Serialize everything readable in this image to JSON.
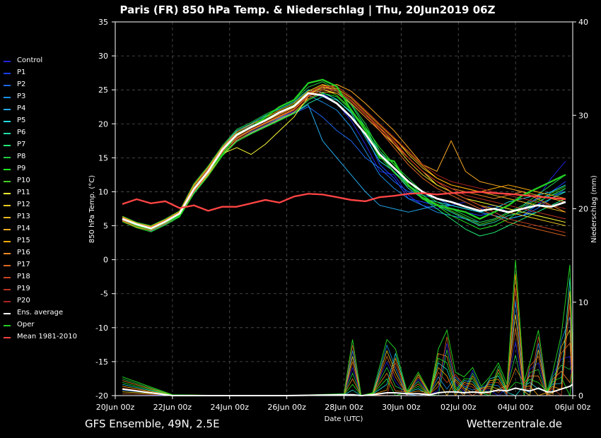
{
  "chart_data": {
    "type": "line",
    "title": "Paris  (FR)  850 hPa Temp. & Niederschlag | Thu, 20Jun2019 06Z",
    "xlabel": "Date (UTC)",
    "ylabel": "850 hPa Temp. (°C)",
    "y2label": "Niederschlag (mm)",
    "ylim": [
      -20,
      35
    ],
    "y2lim": [
      0,
      40
    ],
    "yticks": [
      "35",
      "30",
      "25",
      "20",
      "15",
      "10",
      "5",
      "0",
      "-5",
      "-10",
      "-15",
      "-20"
    ],
    "y2ticks": [
      "40",
      "30",
      "20",
      "10",
      "0"
    ],
    "xlim": [
      0,
      16
    ],
    "x_ticks": [
      {
        "x": 0,
        "label": "20Jun 00z"
      },
      {
        "x": 2,
        "label": "22Jun 00z"
      },
      {
        "x": 4,
        "label": "24Jun 00z"
      },
      {
        "x": 6,
        "label": "26Jun 00z"
      },
      {
        "x": 8,
        "label": "28Jun 00z"
      },
      {
        "x": 10,
        "label": "30Jun 00z"
      },
      {
        "x": 12,
        "label": "02Jul 00z"
      },
      {
        "x": 14,
        "label": "04Jul 00z"
      },
      {
        "x": 16,
        "label": "06Jul 00z"
      }
    ],
    "grid": true,
    "legend_position": "left",
    "footer_left": "GFS Ensemble, 49N, 2.5E",
    "footer_right": "Wetterzentrale.de",
    "x_days": [
      0.25,
      0.75,
      1.25,
      1.75,
      2.25,
      2.75,
      3.25,
      3.75,
      4.25,
      4.75,
      5.25,
      5.75,
      6.25,
      6.75,
      7.25,
      7.75,
      8.25,
      8.75,
      9.25,
      9.75,
      10.25,
      10.75,
      11.25,
      11.75,
      12.25,
      12.75,
      13.25,
      13.75,
      14.25,
      14.75,
      15.25,
      15.75
    ],
    "series": [
      {
        "name": "Oper",
        "color": "#22cc22",
        "width": 2.2,
        "temp": [
          6.0,
          5.0,
          4.5,
          5.5,
          6.5,
          10.5,
          13.0,
          15.5,
          18.5,
          19.5,
          21.0,
          22.5,
          23.5,
          26.0,
          26.5,
          25.5,
          22.0,
          19.0,
          15.0,
          14.5,
          11.0,
          9.0,
          8.0,
          7.5,
          7.0,
          6.0,
          7.0,
          8.0,
          9.5,
          10.5,
          11.5,
          12.5
        ]
      },
      {
        "name": "Control",
        "color": "#2222dd",
        "width": 1,
        "temp": [
          6.0,
          5.5,
          4.8,
          5.8,
          7.0,
          10.8,
          13.5,
          16.5,
          18.8,
          19.8,
          20.5,
          21.5,
          22.5,
          24.5,
          24.0,
          23.0,
          20.5,
          17.0,
          13.0,
          12.5,
          9.5,
          8.0,
          7.5,
          8.0,
          8.5,
          7.5,
          8.0,
          7.0,
          7.5,
          9.0,
          12.0,
          14.5
        ]
      },
      {
        "name": "P1",
        "color": "#1a3fff",
        "width": 1,
        "temp": [
          6.2,
          5.2,
          4.6,
          5.5,
          6.8,
          10.2,
          12.8,
          16.0,
          18.0,
          19.2,
          20.2,
          21.0,
          21.8,
          23.5,
          24.5,
          23.0,
          21.0,
          18.5,
          14.0,
          12.0,
          9.0,
          8.5,
          8.0,
          7.5,
          7.0,
          6.5,
          7.0,
          6.0,
          6.5,
          8.0,
          10.0,
          11.5
        ]
      },
      {
        "name": "P2",
        "color": "#1a66ee",
        "width": 1,
        "temp": [
          5.8,
          5.0,
          4.2,
          5.2,
          6.5,
          9.8,
          12.5,
          15.5,
          17.5,
          18.8,
          19.8,
          20.8,
          21.5,
          22.5,
          21.0,
          19.0,
          17.5,
          15.0,
          13.5,
          11.5,
          10.0,
          9.5,
          9.0,
          8.0,
          7.5,
          7.0,
          6.5,
          6.0,
          6.5,
          7.5,
          9.0,
          10.5
        ]
      },
      {
        "name": "P3",
        "color": "#1a90e8",
        "width": 1,
        "temp": [
          6.1,
          5.3,
          4.7,
          5.6,
          6.9,
          10.6,
          13.2,
          16.2,
          18.4,
          19.6,
          20.6,
          21.7,
          22.7,
          24.2,
          23.2,
          22.0,
          19.5,
          16.0,
          12.5,
          10.5,
          9.0,
          8.0,
          7.0,
          6.5,
          6.0,
          5.5,
          6.0,
          7.0,
          8.0,
          9.0,
          9.5,
          10.0
        ]
      },
      {
        "name": "P4",
        "color": "#22aaee",
        "width": 1,
        "temp": [
          5.9,
          4.9,
          4.4,
          5.4,
          6.6,
          10.0,
          12.7,
          15.8,
          17.8,
          19.0,
          20.0,
          20.9,
          21.6,
          22.8,
          17.5,
          15.0,
          12.5,
          10.0,
          8.0,
          7.5,
          7.0,
          7.5,
          8.0,
          8.0,
          7.5,
          7.0,
          6.5,
          6.0,
          6.5,
          7.0,
          8.0,
          9.0
        ]
      },
      {
        "name": "P5",
        "color": "#22dddd",
        "width": 1,
        "temp": [
          6.3,
          5.4,
          4.9,
          5.9,
          7.1,
          11.0,
          13.6,
          16.6,
          19.0,
          20.0,
          21.2,
          22.2,
          23.2,
          25.0,
          24.6,
          23.6,
          21.6,
          18.0,
          14.5,
          13.0,
          10.5,
          9.0,
          8.5,
          8.0,
          7.5,
          7.0,
          7.5,
          8.5,
          9.0,
          9.5,
          10.0,
          11.0
        ]
      },
      {
        "name": "P6",
        "color": "#22ddaa",
        "width": 1,
        "temp": [
          5.7,
          4.8,
          4.3,
          5.3,
          6.4,
          9.9,
          12.4,
          15.4,
          17.6,
          18.6,
          19.6,
          20.6,
          21.6,
          23.0,
          24.0,
          23.5,
          21.8,
          19.0,
          16.0,
          13.5,
          11.0,
          9.5,
          8.0,
          7.0,
          6.0,
          5.0,
          5.5,
          6.5,
          7.0,
          8.0,
          9.0,
          10.0
        ]
      },
      {
        "name": "P7",
        "color": "#22ee77",
        "width": 1,
        "temp": [
          6.0,
          5.1,
          4.6,
          5.7,
          6.8,
          10.4,
          13.1,
          16.1,
          18.3,
          19.5,
          20.5,
          21.5,
          22.6,
          24.8,
          25.8,
          24.8,
          22.8,
          19.5,
          15.5,
          13.0,
          11.0,
          9.0,
          7.5,
          6.0,
          4.5,
          3.5,
          4.0,
          5.0,
          6.0,
          7.0,
          8.0,
          9.0
        ]
      },
      {
        "name": "P8",
        "color": "#22cc44",
        "width": 1,
        "temp": [
          6.4,
          5.5,
          5.0,
          6.0,
          7.2,
          11.2,
          13.8,
          16.8,
          19.2,
          20.2,
          21.4,
          22.4,
          23.4,
          25.4,
          26.2,
          25.0,
          23.0,
          20.0,
          16.0,
          14.0,
          12.0,
          10.0,
          8.5,
          7.5,
          6.5,
          5.5,
          6.0,
          7.0,
          8.0,
          9.5,
          11.0,
          12.5
        ]
      },
      {
        "name": "P9",
        "color": "#22ee22",
        "width": 1,
        "temp": [
          5.6,
          4.7,
          4.1,
          5.1,
          6.3,
          9.7,
          12.3,
          15.3,
          17.4,
          18.5,
          19.5,
          20.5,
          21.5,
          23.5,
          24.5,
          24.0,
          22.0,
          19.5,
          16.5,
          14.0,
          11.5,
          9.5,
          8.0,
          6.5,
          5.5,
          4.5,
          5.0,
          6.0,
          7.5,
          8.5,
          9.5,
          10.5
        ]
      },
      {
        "name": "P10",
        "color": "#44cc22",
        "width": 1,
        "temp": [
          6.2,
          5.3,
          4.8,
          5.8,
          7.0,
          10.9,
          13.4,
          16.4,
          18.6,
          19.7,
          20.7,
          21.8,
          22.8,
          24.6,
          25.2,
          24.2,
          22.2,
          19.2,
          15.2,
          12.8,
          10.8,
          9.2,
          8.2,
          7.2,
          6.2,
          5.2,
          5.8,
          6.8,
          7.8,
          8.8,
          9.8,
          10.8
        ]
      },
      {
        "name": "P11",
        "color": "#ffff33",
        "width": 1,
        "temp": [
          5.8,
          4.9,
          4.4,
          5.4,
          6.6,
          10.1,
          12.6,
          15.6,
          16.5,
          15.5,
          17.0,
          19.0,
          21.0,
          24.0,
          25.0,
          24.5,
          23.0,
          21.0,
          19.0,
          17.0,
          15.0,
          13.0,
          11.0,
          10.0,
          9.0,
          8.5,
          8.0,
          7.5,
          7.0,
          6.5,
          6.0,
          5.5
        ]
      },
      {
        "name": "P12",
        "color": "#eecc22",
        "width": 1,
        "temp": [
          6.1,
          5.2,
          4.7,
          5.7,
          6.9,
          10.5,
          13.2,
          16.2,
          18.2,
          19.4,
          20.4,
          21.4,
          22.4,
          24.4,
          25.4,
          25.0,
          23.5,
          21.5,
          19.5,
          17.0,
          14.5,
          12.5,
          11.0,
          10.0,
          9.0,
          8.0,
          7.5,
          7.0,
          6.5,
          6.0,
          5.5,
          5.0
        ]
      },
      {
        "name": "P13",
        "color": "#eebb22",
        "width": 1,
        "temp": [
          5.9,
          5.0,
          4.5,
          5.5,
          6.7,
          10.2,
          12.9,
          15.9,
          17.9,
          19.1,
          20.1,
          21.1,
          22.1,
          24.1,
          25.6,
          25.5,
          24.0,
          22.0,
          20.0,
          18.0,
          15.5,
          13.5,
          12.0,
          11.0,
          10.5,
          10.0,
          9.5,
          9.0,
          8.5,
          8.0,
          7.5,
          7.0
        ]
      },
      {
        "name": "P14",
        "color": "#ffaa22",
        "width": 1,
        "temp": [
          6.0,
          5.1,
          4.6,
          5.6,
          6.8,
          10.3,
          13.0,
          16.0,
          18.0,
          19.2,
          20.2,
          21.2,
          22.2,
          24.2,
          25.2,
          25.8,
          24.8,
          23.0,
          21.0,
          19.0,
          16.5,
          14.0,
          13.0,
          17.5,
          13.0,
          11.5,
          11.0,
          10.5,
          10.0,
          9.5,
          9.0,
          8.5
        ]
      },
      {
        "name": "P15",
        "color": "#ffaa00",
        "width": 1,
        "temp": [
          6.3,
          5.4,
          4.9,
          5.9,
          7.1,
          11.0,
          13.6,
          16.6,
          18.8,
          19.9,
          20.9,
          22.0,
          23.0,
          24.8,
          25.8,
          25.2,
          23.8,
          21.8,
          19.8,
          17.8,
          15.8,
          13.8,
          12.0,
          11.0,
          10.5,
          10.0,
          10.5,
          11.0,
          10.5,
          10.0,
          9.5,
          9.0
        ]
      },
      {
        "name": "P16",
        "color": "#ee8822",
        "width": 1,
        "temp": [
          5.7,
          4.8,
          4.3,
          5.3,
          6.5,
          10.0,
          12.5,
          15.5,
          17.6,
          18.7,
          19.7,
          20.7,
          21.7,
          23.7,
          24.7,
          24.5,
          23.0,
          21.0,
          19.0,
          17.0,
          15.0,
          13.0,
          11.5,
          10.5,
          10.0,
          9.5,
          9.0,
          9.5,
          10.0,
          9.0,
          8.0,
          7.0
        ]
      },
      {
        "name": "P17",
        "color": "#dd6622",
        "width": 1,
        "temp": [
          6.2,
          5.3,
          4.8,
          5.8,
          7.0,
          10.8,
          13.4,
          16.4,
          18.6,
          19.6,
          20.6,
          21.6,
          22.6,
          24.6,
          25.6,
          25.0,
          23.5,
          21.5,
          19.0,
          16.5,
          14.0,
          12.0,
          10.5,
          9.5,
          8.5,
          7.5,
          6.5,
          5.5,
          5.0,
          4.5,
          4.0,
          3.5
        ]
      },
      {
        "name": "P18",
        "color": "#cc4422",
        "width": 1,
        "temp": [
          5.8,
          4.9,
          4.4,
          5.4,
          6.6,
          10.1,
          12.8,
          15.8,
          17.8,
          19.0,
          20.0,
          21.0,
          22.0,
          24.0,
          25.0,
          24.8,
          23.3,
          21.3,
          19.3,
          17.3,
          15.0,
          13.0,
          11.5,
          10.0,
          9.0,
          8.0,
          7.0,
          6.0,
          5.5,
          5.0,
          4.5,
          4.0
        ]
      },
      {
        "name": "P19",
        "color": "#bb3322",
        "width": 1,
        "temp": [
          6.0,
          5.1,
          4.6,
          5.6,
          6.8,
          10.4,
          13.0,
          16.0,
          18.0,
          19.2,
          20.2,
          21.2,
          22.2,
          24.2,
          25.2,
          25.0,
          23.5,
          21.5,
          19.5,
          17.5,
          15.0,
          13.0,
          11.5,
          10.5,
          9.5,
          9.0,
          8.5,
          8.0,
          7.5,
          7.0,
          6.5,
          6.0
        ]
      },
      {
        "name": "P20",
        "color": "#aa2222",
        "width": 1,
        "temp": [
          6.1,
          5.2,
          4.7,
          5.7,
          6.9,
          10.6,
          13.2,
          16.2,
          18.4,
          19.5,
          20.5,
          21.5,
          22.5,
          24.5,
          25.5,
          25.5,
          24.0,
          22.0,
          20.0,
          18.0,
          16.0,
          14.0,
          12.5,
          11.5,
          11.0,
          10.5,
          10.0,
          9.5,
          9.0,
          8.5,
          8.0,
          7.5
        ]
      },
      {
        "name": "Ens. average",
        "color": "#ffffff",
        "width": 2.6,
        "temp": [
          6.0,
          5.2,
          4.6,
          5.6,
          6.8,
          10.4,
          13.0,
          16.2,
          18.4,
          19.5,
          20.5,
          21.7,
          22.6,
          24.5,
          24.2,
          23.0,
          21.0,
          18.5,
          15.5,
          13.5,
          11.5,
          10.0,
          9.0,
          8.5,
          7.8,
          7.2,
          7.5,
          7.0,
          7.5,
          8.0,
          7.8,
          8.5
        ]
      },
      {
        "name": "Mean 1981-2010",
        "color": "#ff4444",
        "width": 2.2,
        "temp": [
          8.2,
          8.9,
          8.3,
          8.6,
          7.6,
          8.0,
          7.2,
          7.8,
          7.8,
          8.3,
          8.8,
          8.4,
          9.3,
          9.7,
          9.6,
          9.2,
          8.8,
          8.6,
          9.2,
          9.4,
          9.7,
          9.8,
          9.6,
          9.8,
          9.9,
          10.0,
          9.8,
          9.7,
          9.5,
          9.3,
          9.1,
          8.9
        ]
      }
    ],
    "precip_x": [
      0.25,
      2,
      4,
      6,
      8,
      8.3,
      8.6,
      9,
      9.5,
      9.8,
      10.2,
      10.6,
      11,
      11.3,
      11.6,
      11.9,
      12.2,
      12.5,
      12.8,
      13.1,
      13.4,
      13.7,
      14,
      14.3,
      14.5,
      14.8,
      15.1,
      15.3,
      15.6,
      15.9,
      16
    ],
    "precip_max": [
      2.0,
      0.1,
      0,
      0,
      0.2,
      6.0,
      0,
      0.3,
      6.0,
      5.0,
      0.5,
      2.5,
      0.3,
      5.0,
      7.0,
      2.5,
      2.0,
      3.0,
      1.0,
      2.0,
      3.5,
      1.2,
      14.5,
      1.5,
      3.5,
      7.0,
      0.5,
      2.5,
      6.5,
      14.0,
      4.0
    ],
    "precip_avg": [
      0.7,
      0,
      0,
      0,
      0.1,
      0.1,
      0,
      0.1,
      0.3,
      0.3,
      0.2,
      0.2,
      0.1,
      0.3,
      0.4,
      0.4,
      0.3,
      0.4,
      0.3,
      0.4,
      0.6,
      0.5,
      0.8,
      0.6,
      0.5,
      0.8,
      0.4,
      0.4,
      0.7,
      1.0,
      1.2
    ]
  }
}
